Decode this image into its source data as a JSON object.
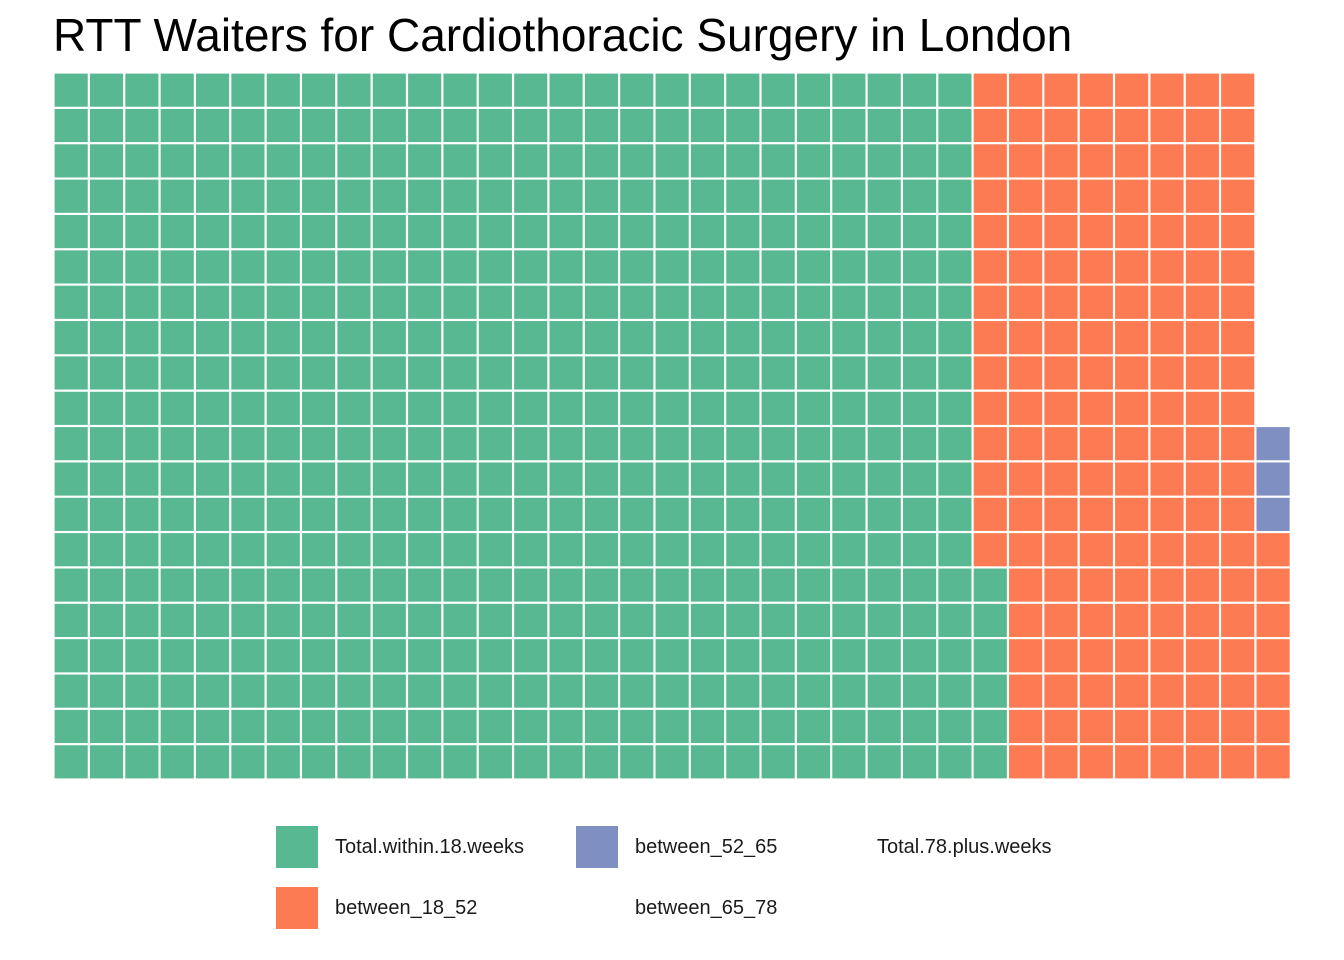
{
  "chart_data": {
    "type": "waffle",
    "title": "RTT Waiters for Cardiothoracic Surgery in London",
    "rows": 20,
    "series": [
      {
        "name": "Total.within.18.weeks",
        "value": 526,
        "color": "#58B891"
      },
      {
        "name": "between_18_52",
        "value": 161,
        "color": "#FC7B52"
      },
      {
        "name": "between_52_65",
        "value": 3,
        "color": "#7F8FC1"
      },
      {
        "name": "between_65_78",
        "value": 0,
        "color": ""
      },
      {
        "name": "Total.78.plus.weeks",
        "value": 0,
        "color": ""
      }
    ],
    "legend_position": "bottom"
  }
}
